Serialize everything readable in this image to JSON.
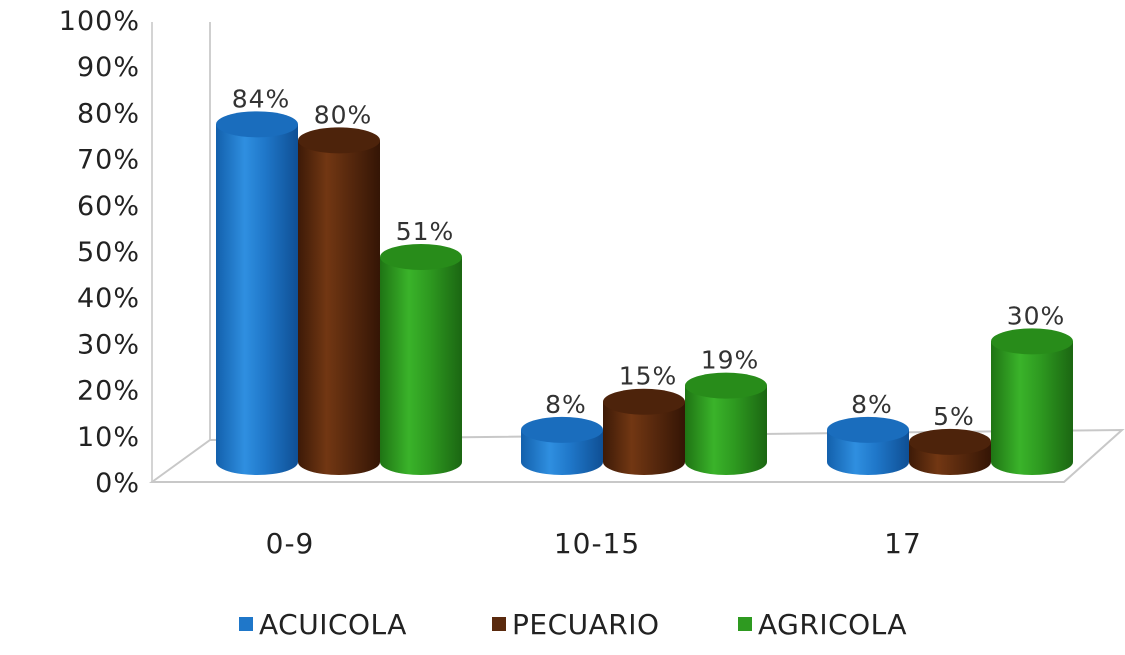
{
  "chart_data": {
    "type": "bar",
    "categories": [
      "0-9",
      "10-15",
      "17"
    ],
    "series": [
      {
        "name": "ACUICOLA",
        "values": [
          84,
          8,
          8
        ],
        "labels": [
          "84%",
          "8%",
          "8%"
        ],
        "color": "#1f77c9"
      },
      {
        "name": "PECUARIO",
        "values": [
          80,
          15,
          5
        ],
        "labels": [
          "80%",
          "15%",
          "5%"
        ],
        "color": "#5a2a0e"
      },
      {
        "name": "AGRICOLA",
        "values": [
          51,
          19,
          30
        ],
        "labels": [
          "51%",
          "19%",
          "30%"
        ],
        "color": "#2e9a20"
      }
    ],
    "ylim": [
      0,
      100
    ],
    "yticks": [
      {
        "value": 0,
        "label": "0%"
      },
      {
        "value": 10,
        "label": "10%"
      },
      {
        "value": 20,
        "label": "20%"
      },
      {
        "value": 30,
        "label": "30%"
      },
      {
        "value": 40,
        "label": "40%"
      },
      {
        "value": 50,
        "label": "50%"
      },
      {
        "value": 60,
        "label": "60%"
      },
      {
        "value": 70,
        "label": "70%"
      },
      {
        "value": 80,
        "label": "80%"
      },
      {
        "value": 90,
        "label": "90%"
      },
      {
        "value": 100,
        "label": "100%"
      }
    ],
    "title": "",
    "xlabel": "",
    "ylabel": "",
    "grid": false,
    "legend_position": "bottom",
    "style": "3d-cylinder"
  }
}
